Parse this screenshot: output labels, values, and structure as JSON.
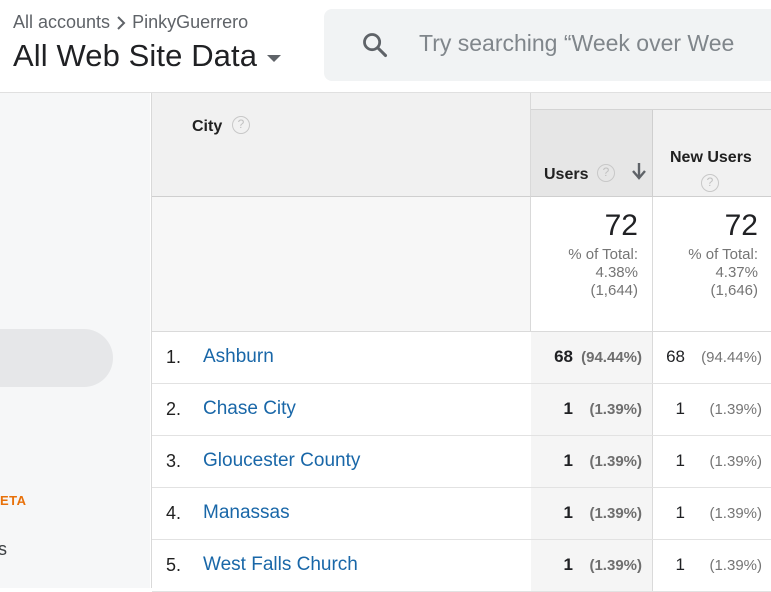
{
  "header": {
    "account": "All accounts",
    "property": "PinkyGuerrero",
    "view": "All Web Site Data",
    "search_placeholder": "Try searching “Week over Wee"
  },
  "sidebar": {
    "beta_label": "ETA",
    "partial_item": "s"
  },
  "table": {
    "dimension_header": "City",
    "columns": {
      "users": "Users",
      "new_users": "New Users"
    },
    "totals": {
      "users": {
        "value": "72",
        "pct_label": "% of Total:",
        "pct": "4.38%",
        "of": "(1,644)"
      },
      "new_users": {
        "value": "72",
        "pct_label": "% of Total:",
        "pct": "4.37%",
        "of": "(1,646)"
      }
    },
    "rows": [
      {
        "rank": "1.",
        "city": "Ashburn",
        "users": "68",
        "users_pct": "(94.44%)",
        "new_users": "68",
        "new_users_pct": "(94.44%)"
      },
      {
        "rank": "2.",
        "city": "Chase City",
        "users": "1",
        "users_pct": "(1.39%)",
        "new_users": "1",
        "new_users_pct": "(1.39%)"
      },
      {
        "rank": "3.",
        "city": "Gloucester County",
        "users": "1",
        "users_pct": "(1.39%)",
        "new_users": "1",
        "new_users_pct": "(1.39%)"
      },
      {
        "rank": "4.",
        "city": "Manassas",
        "users": "1",
        "users_pct": "(1.39%)",
        "new_users": "1",
        "new_users_pct": "(1.39%)"
      },
      {
        "rank": "5.",
        "city": "West Falls Church",
        "users": "1",
        "users_pct": "(1.39%)",
        "new_users": "1",
        "new_users_pct": "(1.39%)"
      }
    ]
  },
  "colors": {
    "link": "#1967a8",
    "beta": "#e8710a"
  }
}
